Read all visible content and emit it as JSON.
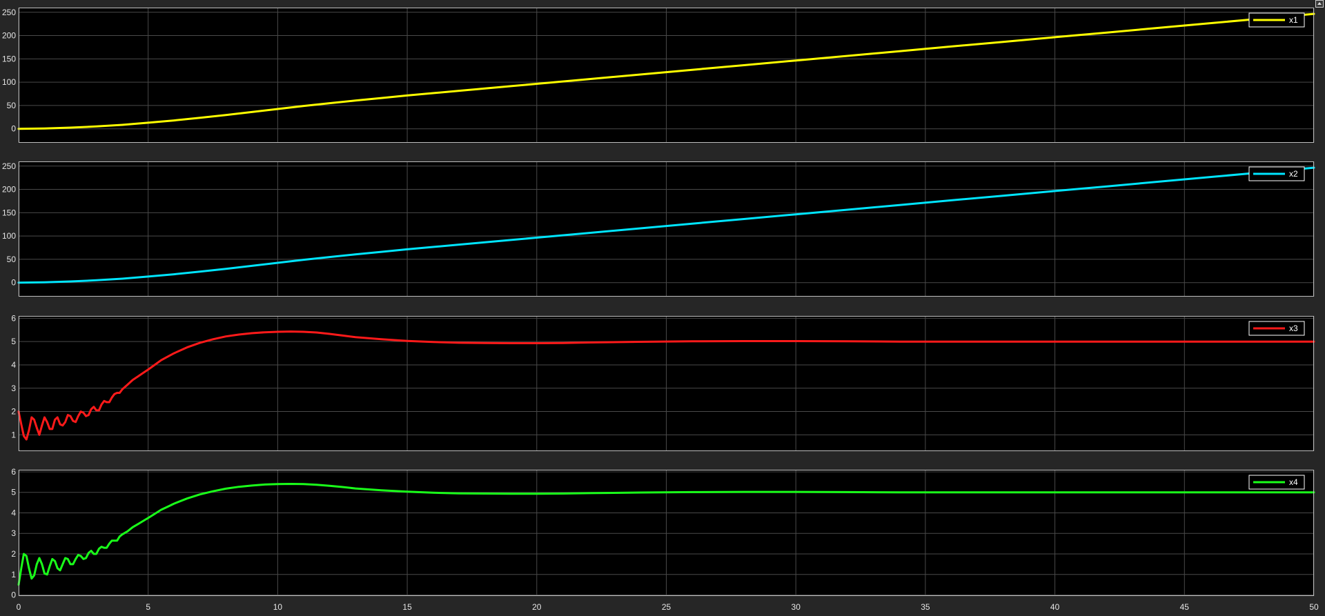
{
  "window": {
    "undock_icon": "arrow-up-icon"
  },
  "colors": {
    "background": "#262626",
    "plot_background": "#000000",
    "grid": "#4a4a4a",
    "axis_border": "#bfbfbf",
    "tick_text": "#e6e6e6"
  },
  "chart_data": [
    {
      "type": "line",
      "title": "",
      "xlabel": "",
      "ylabel": "",
      "xlim": [
        0,
        50
      ],
      "ylim": [
        -30,
        260
      ],
      "yticks": [
        0,
        50,
        100,
        150,
        200,
        250
      ],
      "xticks": [],
      "grid": true,
      "legend": "top-right",
      "series": [
        {
          "name": "x1",
          "color": "#ffff00",
          "x": [
            0,
            1,
            2,
            3,
            4,
            5,
            6,
            7,
            8,
            9,
            10,
            11,
            12,
            13,
            14,
            15,
            16,
            17,
            18,
            19,
            20,
            22,
            24,
            26,
            28,
            30,
            32,
            34,
            36,
            38,
            40,
            42,
            44,
            46,
            48,
            50
          ],
          "values": [
            0,
            0.8,
            2.5,
            5,
            8.5,
            13,
            18,
            23.5,
            29.5,
            36,
            42.5,
            49,
            55,
            60.5,
            66,
            71.5,
            76.5,
            81.5,
            86.5,
            91.5,
            96.5,
            106.5,
            116.5,
            126.5,
            136.5,
            146.5,
            156.5,
            166.5,
            176.5,
            186.5,
            196.5,
            206.5,
            216.5,
            226.5,
            236.5,
            246.5
          ]
        }
      ]
    },
    {
      "type": "line",
      "title": "",
      "xlabel": "",
      "ylabel": "",
      "xlim": [
        0,
        50
      ],
      "ylim": [
        -30,
        260
      ],
      "yticks": [
        0,
        50,
        100,
        150,
        200,
        250
      ],
      "xticks": [],
      "grid": true,
      "legend": "top-right",
      "series": [
        {
          "name": "x2",
          "color": "#00e5ff",
          "x": [
            0,
            1,
            2,
            3,
            4,
            5,
            6,
            7,
            8,
            9,
            10,
            11,
            12,
            13,
            14,
            15,
            16,
            17,
            18,
            19,
            20,
            22,
            24,
            26,
            28,
            30,
            32,
            34,
            36,
            38,
            40,
            42,
            44,
            46,
            48,
            50
          ],
          "values": [
            0,
            0.8,
            2.5,
            5,
            8.5,
            13,
            18,
            23.5,
            29.5,
            36,
            42.5,
            49,
            55,
            60.5,
            66,
            71.5,
            76.5,
            81.5,
            86.5,
            91.5,
            96.5,
            106.5,
            116.5,
            126.5,
            136.5,
            146.5,
            156.5,
            166.5,
            176.5,
            186.5,
            196.5,
            206.5,
            216.5,
            226.5,
            236.5,
            246.5
          ]
        }
      ]
    },
    {
      "type": "line",
      "title": "",
      "xlabel": "",
      "ylabel": "",
      "xlim": [
        0,
        50
      ],
      "ylim": [
        0.3,
        6.1
      ],
      "yticks": [
        1,
        2,
        3,
        4,
        5,
        6
      ],
      "xticks": [],
      "grid": true,
      "legend": "top-right",
      "series": [
        {
          "name": "x3",
          "color": "#ff1a1a",
          "x": [
            0,
            0.1,
            0.2,
            0.3,
            0.4,
            0.5,
            0.6,
            0.7,
            0.8,
            0.9,
            1.0,
            1.1,
            1.2,
            1.3,
            1.4,
            1.5,
            1.6,
            1.7,
            1.8,
            1.9,
            2.0,
            2.1,
            2.2,
            2.3,
            2.4,
            2.5,
            2.6,
            2.7,
            2.8,
            2.9,
            3.0,
            3.1,
            3.2,
            3.3,
            3.4,
            3.5,
            3.6,
            3.7,
            3.8,
            3.9,
            4.0,
            4.2,
            4.4,
            4.6,
            4.8,
            5.0,
            5.25,
            5.5,
            5.75,
            6.0,
            6.5,
            7.0,
            7.5,
            8.0,
            8.5,
            9.0,
            9.5,
            10.0,
            10.5,
            11.0,
            11.5,
            12.0,
            12.5,
            13.0,
            14.0,
            15.0,
            16.0,
            17.0,
            18.0,
            19.0,
            20.0,
            21.0,
            22.0,
            24.0,
            26.0,
            28.0,
            30.0,
            32.0,
            34.0,
            36.0,
            38.0,
            40.0,
            42.0,
            44.0,
            46.0,
            48.0,
            50.0
          ],
          "values": [
            2.0,
            1.45,
            0.95,
            0.8,
            1.2,
            1.75,
            1.65,
            1.3,
            1.0,
            1.4,
            1.75,
            1.55,
            1.25,
            1.25,
            1.65,
            1.75,
            1.45,
            1.4,
            1.55,
            1.85,
            1.8,
            1.6,
            1.55,
            1.8,
            2.0,
            1.95,
            1.8,
            1.85,
            2.1,
            2.2,
            2.05,
            2.05,
            2.3,
            2.45,
            2.4,
            2.4,
            2.6,
            2.75,
            2.8,
            2.8,
            2.95,
            3.15,
            3.35,
            3.5,
            3.65,
            3.8,
            4.0,
            4.2,
            4.35,
            4.5,
            4.75,
            4.95,
            5.1,
            5.22,
            5.3,
            5.36,
            5.4,
            5.42,
            5.43,
            5.42,
            5.39,
            5.33,
            5.26,
            5.19,
            5.1,
            5.03,
            4.98,
            4.95,
            4.94,
            4.93,
            4.93,
            4.94,
            4.96,
            4.99,
            5.01,
            5.02,
            5.02,
            5.01,
            5.0,
            5.0,
            5.0,
            5.0,
            5.0,
            5.0,
            5.0,
            5.0,
            5.0
          ]
        }
      ]
    },
    {
      "type": "line",
      "title": "",
      "xlabel": "",
      "ylabel": "",
      "xlim": [
        0,
        50
      ],
      "ylim": [
        -0.05,
        6.1
      ],
      "yticks": [
        0,
        1,
        2,
        3,
        4,
        5,
        6
      ],
      "xticks": [
        0,
        5,
        10,
        15,
        20,
        25,
        30,
        35,
        40,
        45,
        50
      ],
      "grid": true,
      "legend": "top-right",
      "series": [
        {
          "name": "x4",
          "color": "#1aff1a",
          "x": [
            0,
            0.1,
            0.2,
            0.3,
            0.4,
            0.5,
            0.6,
            0.7,
            0.8,
            0.9,
            1.0,
            1.1,
            1.2,
            1.3,
            1.4,
            1.5,
            1.6,
            1.7,
            1.8,
            1.9,
            2.0,
            2.1,
            2.2,
            2.3,
            2.4,
            2.5,
            2.6,
            2.7,
            2.8,
            2.9,
            3.0,
            3.1,
            3.2,
            3.3,
            3.4,
            3.5,
            3.6,
            3.7,
            3.8,
            3.9,
            4.0,
            4.2,
            4.4,
            4.6,
            4.8,
            5.0,
            5.25,
            5.5,
            5.75,
            6.0,
            6.5,
            7.0,
            7.5,
            8.0,
            8.5,
            9.0,
            9.5,
            10.0,
            10.5,
            11.0,
            11.5,
            12.0,
            12.5,
            13.0,
            14.0,
            15.0,
            16.0,
            17.0,
            18.0,
            19.0,
            20.0,
            21.0,
            22.0,
            24.0,
            26.0,
            28.0,
            30.0,
            32.0,
            34.0,
            36.0,
            38.0,
            40.0,
            42.0,
            44.0,
            46.0,
            48.0,
            50.0
          ],
          "values": [
            0.5,
            1.3,
            2.0,
            1.9,
            1.3,
            0.8,
            0.95,
            1.5,
            1.8,
            1.5,
            1.05,
            1.0,
            1.4,
            1.75,
            1.65,
            1.3,
            1.2,
            1.5,
            1.8,
            1.75,
            1.5,
            1.5,
            1.75,
            1.95,
            1.9,
            1.75,
            1.8,
            2.05,
            2.15,
            2.0,
            2.0,
            2.25,
            2.35,
            2.3,
            2.3,
            2.5,
            2.65,
            2.65,
            2.65,
            2.85,
            2.95,
            3.1,
            3.3,
            3.45,
            3.6,
            3.75,
            3.95,
            4.15,
            4.3,
            4.45,
            4.7,
            4.9,
            5.05,
            5.18,
            5.27,
            5.33,
            5.38,
            5.4,
            5.41,
            5.4,
            5.37,
            5.32,
            5.26,
            5.19,
            5.1,
            5.03,
            4.98,
            4.95,
            4.94,
            4.93,
            4.93,
            4.94,
            4.96,
            4.99,
            5.01,
            5.02,
            5.02,
            5.01,
            5.0,
            5.0,
            5.0,
            5.0,
            5.0,
            5.0,
            5.0,
            5.0,
            5.0
          ]
        }
      ]
    }
  ]
}
